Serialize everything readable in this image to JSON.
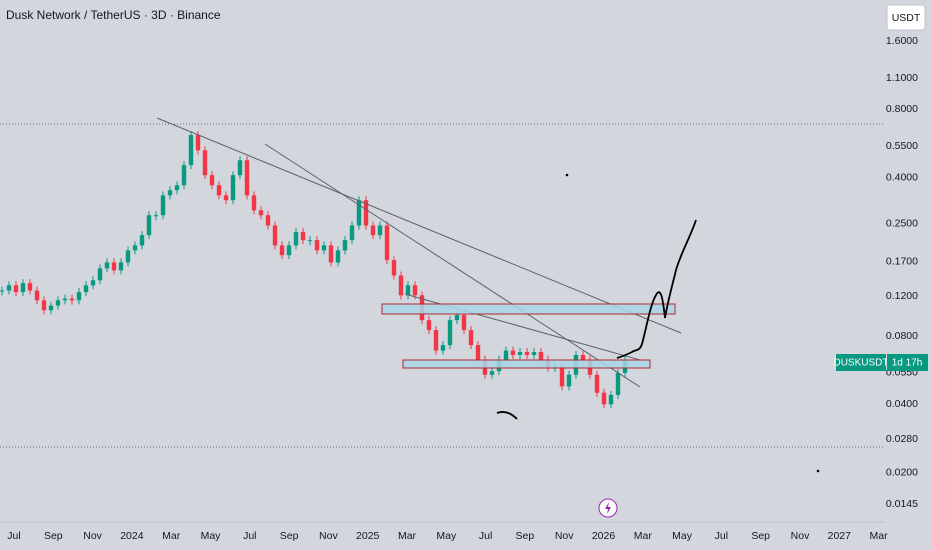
{
  "chart_data": {
    "type": "candlestick",
    "title": "Dusk Network / TetherUS · 3D · Binance",
    "currency": "USDT",
    "log_scale": true,
    "up_color": "#089981",
    "down_color": "#f23645",
    "values": [
      0.127,
      0.134,
      0.125,
      0.137,
      0.127,
      0.115,
      0.104,
      0.109,
      0.115,
      0.117,
      0.115,
      0.125,
      0.134,
      0.141,
      0.159,
      0.169,
      0.156,
      0.169,
      0.191,
      0.201,
      0.223,
      0.273,
      0.273,
      0.334,
      0.352,
      0.37,
      0.454,
      0.616,
      0.528,
      0.41,
      0.37,
      0.334,
      0.318,
      0.41,
      0.477,
      0.334,
      0.287,
      0.273,
      0.246,
      0.201,
      0.182,
      0.201,
      0.23,
      0.212,
      0.212,
      0.191,
      0.201,
      0.169,
      0.191,
      0.212,
      0.246,
      0.318,
      0.246,
      0.223,
      0.246,
      0.173,
      0.148,
      0.121,
      0.134,
      0.121,
      0.094,
      0.085,
      0.069,
      0.073,
      0.094,
      0.099,
      0.085,
      0.073,
      0.063,
      0.054,
      0.056,
      0.063,
      0.069,
      0.066,
      0.068,
      0.066,
      0.068,
      0.063,
      0.058,
      0.059,
      0.048,
      0.054,
      0.066,
      0.063,
      0.054,
      0.045,
      0.04,
      0.044,
      0.055,
      0.063
    ],
    "ylim": [
      0.0121,
      2.43
    ],
    "yticks": [
      {
        "value": 1.6,
        "label": "1.6000"
      },
      {
        "value": 1.1,
        "label": "1.1000"
      },
      {
        "value": 0.8,
        "label": "0.8000"
      },
      {
        "value": 0.55,
        "label": "0.5500"
      },
      {
        "value": 0.4,
        "label": "0.4000"
      },
      {
        "value": 0.25,
        "label": "0.2500"
      },
      {
        "value": 0.17,
        "label": "0.1700"
      },
      {
        "value": 0.12,
        "label": "0.1200"
      },
      {
        "value": 0.08,
        "label": "0.0800"
      },
      {
        "value": 0.055,
        "label": "0.0550"
      },
      {
        "value": 0.04,
        "label": "0.0400"
      },
      {
        "value": 0.028,
        "label": "0.0280"
      },
      {
        "value": 0.02,
        "label": "0.0200"
      },
      {
        "value": 0.0145,
        "label": "0.0145"
      }
    ],
    "xticks": [
      "Jul",
      "Sep",
      "Nov",
      "2024",
      "Mar",
      "May",
      "Jul",
      "Sep",
      "Nov",
      "2025",
      "Mar",
      "May",
      "Jul",
      "Sep",
      "Nov",
      "2026",
      "Mar",
      "May",
      "Jul",
      "Sep",
      "Nov",
      "2027",
      "Mar"
    ],
    "price_label": {
      "symbol": "DUSKUSDT",
      "countdown": "1d 17h"
    }
  }
}
